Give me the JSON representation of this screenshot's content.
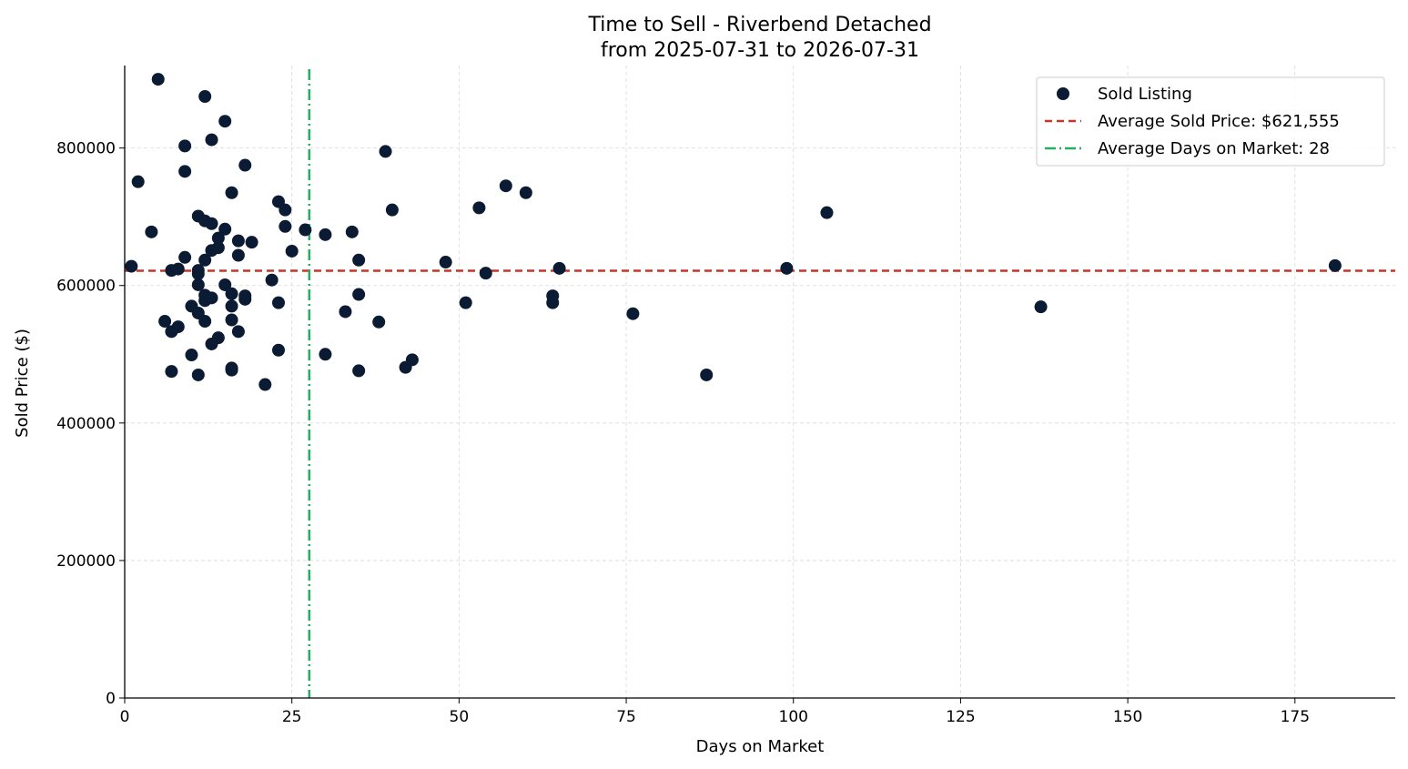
{
  "chart_data": {
    "type": "scatter",
    "title": "Time to Sell - Riverbend Detached",
    "subtitle": "from 2025-07-31 to 2026-07-31",
    "xlabel": "Days on Market",
    "ylabel": "Sold Price ($)",
    "xlim": [
      0,
      190
    ],
    "ylim": [
      0,
      920000
    ],
    "xticks": [
      0,
      25,
      50,
      75,
      100,
      125,
      150,
      175
    ],
    "yticks": [
      0,
      200000,
      400000,
      600000,
      800000
    ],
    "grid": true,
    "legend_position": "top-right",
    "colors": {
      "points": "#0b1b33",
      "avg_price": "#c0392b",
      "avg_days": "#27ae60"
    },
    "series": [
      {
        "name": "Sold Listing",
        "points": [
          [
            1,
            628000
          ],
          [
            2,
            751000
          ],
          [
            4,
            678000
          ],
          [
            5,
            900000
          ],
          [
            6,
            548000
          ],
          [
            7,
            622000
          ],
          [
            7,
            533000
          ],
          [
            7,
            475000
          ],
          [
            8,
            624000
          ],
          [
            8,
            540000
          ],
          [
            9,
            803000
          ],
          [
            9,
            766000
          ],
          [
            9,
            641000
          ],
          [
            10,
            570000
          ],
          [
            10,
            499000
          ],
          [
            11,
            701000
          ],
          [
            11,
            622000
          ],
          [
            11,
            617000
          ],
          [
            11,
            601000
          ],
          [
            11,
            560000
          ],
          [
            11,
            470000
          ],
          [
            12,
            875000
          ],
          [
            12,
            694000
          ],
          [
            12,
            637000
          ],
          [
            12,
            586000
          ],
          [
            12,
            578000
          ],
          [
            12,
            548000
          ],
          [
            13,
            812000
          ],
          [
            13,
            690000
          ],
          [
            13,
            651000
          ],
          [
            13,
            582000
          ],
          [
            13,
            515000
          ],
          [
            14,
            669000
          ],
          [
            14,
            655000
          ],
          [
            14,
            524000
          ],
          [
            15,
            839000
          ],
          [
            15,
            682000
          ],
          [
            15,
            601000
          ],
          [
            16,
            735000
          ],
          [
            16,
            588000
          ],
          [
            16,
            570000
          ],
          [
            16,
            550000
          ],
          [
            16,
            480000
          ],
          [
            16,
            477000
          ],
          [
            17,
            665000
          ],
          [
            17,
            644000
          ],
          [
            17,
            533000
          ],
          [
            18,
            775000
          ],
          [
            18,
            585000
          ],
          [
            18,
            580000
          ],
          [
            19,
            663000
          ],
          [
            21,
            456000
          ],
          [
            22,
            608000
          ],
          [
            23,
            722000
          ],
          [
            23,
            575000
          ],
          [
            23,
            506000
          ],
          [
            24,
            710000
          ],
          [
            24,
            686000
          ],
          [
            25,
            650000
          ],
          [
            27,
            681000
          ],
          [
            30,
            674000
          ],
          [
            30,
            500000
          ],
          [
            33,
            562000
          ],
          [
            34,
            678000
          ],
          [
            35,
            637000
          ],
          [
            35,
            587000
          ],
          [
            35,
            476000
          ],
          [
            38,
            547000
          ],
          [
            39,
            795000
          ],
          [
            40,
            710000
          ],
          [
            42,
            481000
          ],
          [
            43,
            492000
          ],
          [
            48,
            634000
          ],
          [
            51,
            575000
          ],
          [
            53,
            713000
          ],
          [
            54,
            618000
          ],
          [
            57,
            745000
          ],
          [
            60,
            735000
          ],
          [
            64,
            585000
          ],
          [
            64,
            575000
          ],
          [
            65,
            625000
          ],
          [
            76,
            559000
          ],
          [
            87,
            470000
          ],
          [
            99,
            625000
          ],
          [
            105,
            706000
          ],
          [
            137,
            569000
          ],
          [
            181,
            629000
          ]
        ]
      },
      {
        "name": "Average Sold Price: $621,555",
        "y": 621555
      },
      {
        "name": "Average Days on Market: 28",
        "x": 27.6
      }
    ]
  }
}
